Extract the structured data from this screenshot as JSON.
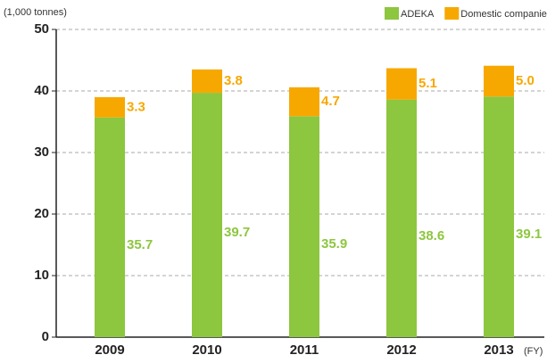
{
  "chart_data": {
    "type": "stacked_bar",
    "y_axis_label": "(1,000 tonnes)",
    "x_axis_label": "(FY)",
    "categories": [
      "2009",
      "2010",
      "2011",
      "2012",
      "2013"
    ],
    "series": [
      {
        "name": "ADEKA",
        "color": "#8dc63f",
        "values": [
          35.7,
          39.7,
          35.9,
          38.6,
          39.1
        ],
        "value_labels": [
          "35.7",
          "39.7",
          "35.9",
          "38.6",
          "39.1"
        ]
      },
      {
        "name": "Domestic companies",
        "color": "#f7a800",
        "values": [
          3.3,
          3.8,
          4.7,
          5.1,
          5.0
        ],
        "value_labels": [
          "3.3",
          "3.8",
          "4.7",
          "5.1",
          "5.0"
        ]
      }
    ],
    "ylim": [
      0,
      50
    ],
    "yticks": [
      0,
      10,
      20,
      30,
      40,
      50
    ],
    "grid": true,
    "legend": "top-right"
  }
}
